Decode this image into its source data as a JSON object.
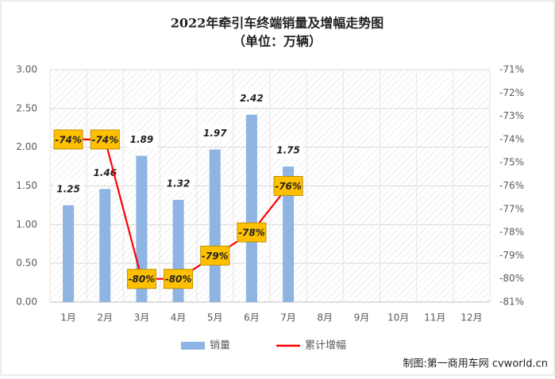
{
  "chart_data": {
    "type": "combo",
    "title": "2022年牵引车终端销量及增幅走势图",
    "subtitle": "（单位：万辆）",
    "note": "制图:第一商用车网 cvworld.cn",
    "categories": [
      "1月",
      "2月",
      "3月",
      "4月",
      "5月",
      "6月",
      "7月",
      "8月",
      "9月",
      "10月",
      "11月",
      "12月"
    ],
    "series": [
      {
        "name": "销量",
        "type": "bar",
        "color": "#8eb4e3",
        "values": [
          1.25,
          1.46,
          1.89,
          1.32,
          1.97,
          2.42,
          1.75,
          null,
          null,
          null,
          null,
          null
        ]
      },
      {
        "name": "累计增幅",
        "type": "line",
        "axis": "y2",
        "color": "#ff0000",
        "values": [
          -74,
          -74,
          -80,
          -80,
          -79,
          -78,
          -76,
          null,
          null,
          null,
          null,
          null
        ],
        "value_labels": [
          "-74%",
          "-74%",
          "-80%",
          "-80%",
          "-79%",
          "-78%",
          "-76%",
          null,
          null,
          null,
          null,
          null
        ]
      }
    ],
    "ylim": [
      0,
      3
    ],
    "yticks": [
      {
        "value": 0,
        "label": "0.00"
      },
      {
        "value": 0.5,
        "label": "0.50"
      },
      {
        "value": 1,
        "label": "1.00"
      },
      {
        "value": 1.5,
        "label": "1.50"
      },
      {
        "value": 2,
        "label": "2.00"
      },
      {
        "value": 2.5,
        "label": "2.50"
      },
      {
        "value": 3,
        "label": "3.00"
      }
    ],
    "y2lim": [
      -81,
      -71
    ],
    "y2ticks": [
      {
        "value": -81,
        "label": "-81%"
      },
      {
        "value": -80,
        "label": "-80%"
      },
      {
        "value": -79,
        "label": "-79%"
      },
      {
        "value": -78,
        "label": "-78%"
      },
      {
        "value": -77,
        "label": "-77%"
      },
      {
        "value": -76,
        "label": "-76%"
      },
      {
        "value": -75,
        "label": "-75%"
      },
      {
        "value": -74,
        "label": "-74%"
      },
      {
        "value": -73,
        "label": "-73%"
      },
      {
        "value": -72,
        "label": "-72%"
      },
      {
        "value": -71,
        "label": "-71%"
      }
    ],
    "legend": "bottom"
  }
}
